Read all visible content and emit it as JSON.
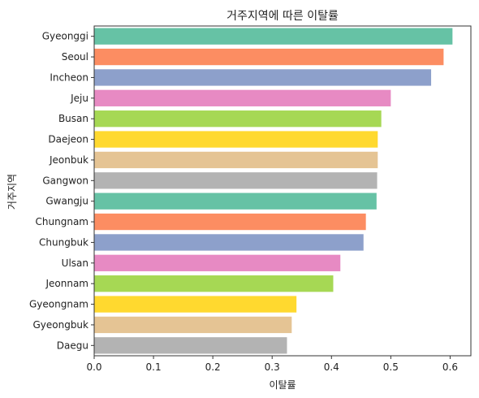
{
  "chart_data": {
    "type": "bar",
    "orientation": "horizontal",
    "title": "거주지역에 따른 이탈률",
    "xlabel": "이탈률",
    "ylabel": "거주지역",
    "xlim": [
      0,
      0.635
    ],
    "xticks": [
      0.0,
      0.1,
      0.2,
      0.3,
      0.4,
      0.5,
      0.6
    ],
    "xtick_labels": [
      "0.0",
      "0.1",
      "0.2",
      "0.3",
      "0.4",
      "0.5",
      "0.6"
    ],
    "grid": false,
    "categories": [
      "Gyeonggi",
      "Seoul",
      "Incheon",
      "Jeju",
      "Busan",
      "Daejeon",
      "Jeonbuk",
      "Gangwon",
      "Gwangju",
      "Chungnam",
      "Chungbuk",
      "Ulsan",
      "Jeonnam",
      "Gyeongnam",
      "Gyeongbuk",
      "Daegu"
    ],
    "values": [
      0.604,
      0.589,
      0.568,
      0.5,
      0.484,
      0.478,
      0.478,
      0.477,
      0.476,
      0.458,
      0.454,
      0.415,
      0.403,
      0.341,
      0.333,
      0.325
    ],
    "colors": [
      "#66c2a5",
      "#fc8d62",
      "#8da0cb",
      "#e78ac3",
      "#a6d854",
      "#ffd92f",
      "#e5c494",
      "#b3b3b3",
      "#66c2a5",
      "#fc8d62",
      "#8da0cb",
      "#e78ac3",
      "#a6d854",
      "#ffd92f",
      "#e5c494",
      "#b3b3b3"
    ]
  }
}
